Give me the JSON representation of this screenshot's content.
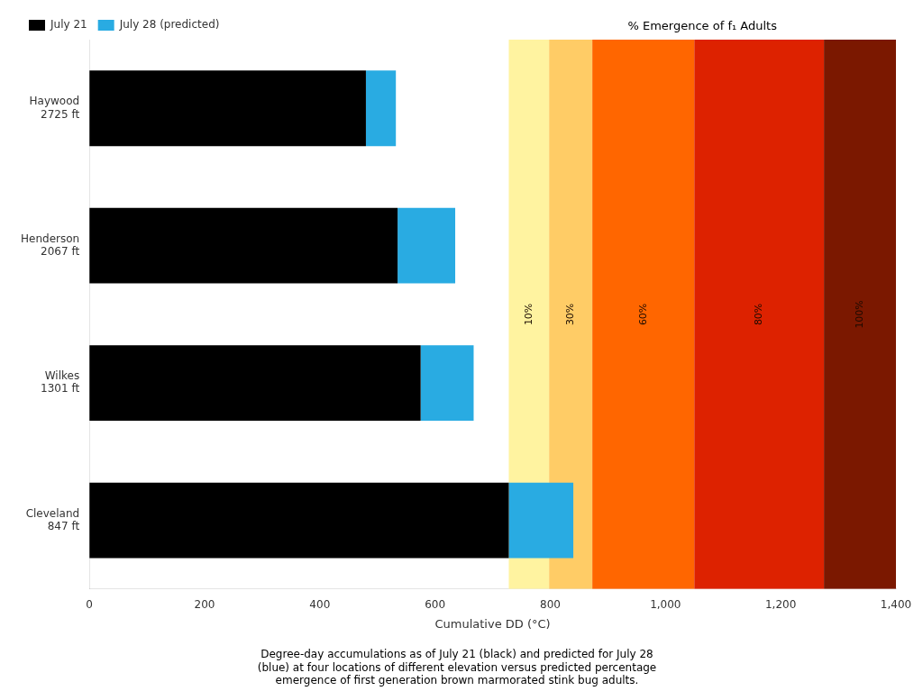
{
  "chart_data": {
    "type": "bar",
    "orientation": "horizontal",
    "stacked": true,
    "categories": [
      "Haywood\n2725 ft",
      "Henderson\n2067 ft",
      "Wilkes\n1301 ft",
      "Cleveland\n847 ft"
    ],
    "series": [
      {
        "name": "July 21",
        "color": "#000000",
        "values": [
          480,
          535,
          575,
          728
        ]
      },
      {
        "name": "July 28 (predicted)",
        "color": "#29ABE2",
        "values": [
          52,
          100,
          92,
          112
        ]
      }
    ],
    "xlabel": "Cumulative DD (°C)",
    "xlim": [
      0,
      1400
    ],
    "xticks": [
      0,
      200,
      400,
      600,
      800,
      1000,
      1200,
      1400
    ],
    "grid": false,
    "legend": "upper left",
    "bands_title": "% Emergence of f₁ Adults",
    "bands": [
      {
        "label": "10%",
        "x_start": 728,
        "x_end": 798,
        "color": "#FFF3A0"
      },
      {
        "label": "30%",
        "x_start": 798,
        "x_end": 873,
        "color": "#FFCC66"
      },
      {
        "label": "60%",
        "x_start": 873,
        "x_end": 1050,
        "color": "#FF6600"
      },
      {
        "label": "80%",
        "x_start": 1050,
        "x_end": 1275,
        "color": "#DD2200"
      },
      {
        "label": "100%",
        "x_start": 1275,
        "x_end": 1400,
        "color": "#7B1800"
      }
    ],
    "caption": "Degree-day accumulations as of July 21 (black) and predicted for July 28\n(blue) at four locations of different elevation versus predicted percentage\nemergence of first generation brown marmorated stink bug adults."
  }
}
